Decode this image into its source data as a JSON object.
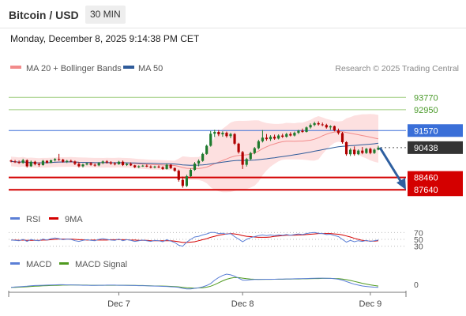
{
  "header": {
    "instrument": "Bitcoin / USD",
    "timeframe": "30 MIN",
    "datetime": "Monday, December 8, 2025 9:14:38 PM CET"
  },
  "legend": {
    "ma20_label": "MA 20 + Bollinger Bands",
    "ma50_label": "MA 50",
    "credit": "Research © 2025 Trading Central"
  },
  "colors": {
    "ma20": "#f28b8b",
    "ma50": "#2f5b9a",
    "bands_fill": "#fde0e0",
    "resistance": "#9ccc7a",
    "pivot": "#3a6fd8",
    "support": "#d40000",
    "price_label_bg": "#333333",
    "candle_up": "#1f7a2e",
    "candle_down": "#b00000",
    "rsi": "#5b7fd6",
    "rsi_ma": "#d40000",
    "macd": "#5b7fd6",
    "macd_signal": "#4f9a1f",
    "arrow": "#2e5fa0"
  },
  "chart_data": [
    {
      "type": "candlestick",
      "title": "Bitcoin / USD",
      "ylim": [
        86500,
        95200
      ],
      "x_labels": [
        "Dec 7",
        "Dec 8",
        "Dec 9"
      ],
      "levels": [
        {
          "value": 93770,
          "label": "93770",
          "kind": "resistance"
        },
        {
          "value": 92950,
          "label": "92950",
          "kind": "resistance"
        },
        {
          "value": 91570,
          "label": "91570",
          "kind": "pivot"
        },
        {
          "value": 88460,
          "label": "88460",
          "kind": "support"
        },
        {
          "value": 87640,
          "label": "87640",
          "kind": "support"
        }
      ],
      "last_price": {
        "value": 90438,
        "label": "90438"
      },
      "forecast_target": 87640,
      "candles": [
        {
          "o": 89580,
          "h": 89640,
          "l": 89460,
          "c": 89520
        },
        {
          "o": 89520,
          "h": 89620,
          "l": 89420,
          "c": 89480
        },
        {
          "o": 89480,
          "h": 89580,
          "l": 89360,
          "c": 89420
        },
        {
          "o": 89420,
          "h": 89700,
          "l": 89380,
          "c": 89600
        },
        {
          "o": 89600,
          "h": 89660,
          "l": 89120,
          "c": 89200
        },
        {
          "o": 89200,
          "h": 89580,
          "l": 89160,
          "c": 89500
        },
        {
          "o": 89500,
          "h": 89560,
          "l": 89260,
          "c": 89340
        },
        {
          "o": 89340,
          "h": 89460,
          "l": 89180,
          "c": 89280
        },
        {
          "o": 89280,
          "h": 89620,
          "l": 89240,
          "c": 89560
        },
        {
          "o": 89560,
          "h": 89600,
          "l": 89380,
          "c": 89440
        },
        {
          "o": 89440,
          "h": 89640,
          "l": 89400,
          "c": 89600
        },
        {
          "o": 89600,
          "h": 89740,
          "l": 89520,
          "c": 89680
        },
        {
          "o": 89680,
          "h": 90020,
          "l": 89560,
          "c": 89640
        },
        {
          "o": 89640,
          "h": 89700,
          "l": 89440,
          "c": 89500
        },
        {
          "o": 89500,
          "h": 89620,
          "l": 89420,
          "c": 89560
        },
        {
          "o": 89560,
          "h": 89640,
          "l": 89460,
          "c": 89520
        },
        {
          "o": 89520,
          "h": 89580,
          "l": 89280,
          "c": 89360
        },
        {
          "o": 89360,
          "h": 89480,
          "l": 89120,
          "c": 89200
        },
        {
          "o": 89200,
          "h": 89380,
          "l": 89120,
          "c": 89320
        },
        {
          "o": 89320,
          "h": 89440,
          "l": 89260,
          "c": 89400
        },
        {
          "o": 89400,
          "h": 89480,
          "l": 89240,
          "c": 89300
        },
        {
          "o": 89300,
          "h": 89380,
          "l": 89180,
          "c": 89260
        },
        {
          "o": 89260,
          "h": 89480,
          "l": 89200,
          "c": 89420
        },
        {
          "o": 89420,
          "h": 89580,
          "l": 89340,
          "c": 89520
        },
        {
          "o": 89520,
          "h": 89600,
          "l": 89380,
          "c": 89460
        },
        {
          "o": 89460,
          "h": 89540,
          "l": 89300,
          "c": 89380
        },
        {
          "o": 89380,
          "h": 89480,
          "l": 89260,
          "c": 89340
        },
        {
          "o": 89340,
          "h": 89560,
          "l": 89300,
          "c": 89500
        },
        {
          "o": 89500,
          "h": 89580,
          "l": 89220,
          "c": 89280
        },
        {
          "o": 89280,
          "h": 89420,
          "l": 89220,
          "c": 89360
        },
        {
          "o": 89360,
          "h": 89460,
          "l": 89220,
          "c": 89260
        },
        {
          "o": 89260,
          "h": 89300,
          "l": 89080,
          "c": 89140
        },
        {
          "o": 89140,
          "h": 89260,
          "l": 89080,
          "c": 89200
        },
        {
          "o": 89200,
          "h": 89300,
          "l": 89160,
          "c": 89240
        },
        {
          "o": 89240,
          "h": 89320,
          "l": 89140,
          "c": 89180
        },
        {
          "o": 89180,
          "h": 89260,
          "l": 89060,
          "c": 89120
        },
        {
          "o": 89120,
          "h": 89240,
          "l": 89060,
          "c": 89180
        },
        {
          "o": 89180,
          "h": 89260,
          "l": 89080,
          "c": 89140
        },
        {
          "o": 89140,
          "h": 89200,
          "l": 88960,
          "c": 89020
        },
        {
          "o": 89020,
          "h": 89380,
          "l": 88980,
          "c": 89300
        },
        {
          "o": 89300,
          "h": 89340,
          "l": 89020,
          "c": 89080
        },
        {
          "o": 89080,
          "h": 89120,
          "l": 88840,
          "c": 88900
        },
        {
          "o": 88900,
          "h": 88980,
          "l": 88180,
          "c": 88300
        },
        {
          "o": 88300,
          "h": 88520,
          "l": 87780,
          "c": 87900
        },
        {
          "o": 87900,
          "h": 88640,
          "l": 87820,
          "c": 88540
        },
        {
          "o": 88540,
          "h": 89060,
          "l": 88480,
          "c": 88960
        },
        {
          "o": 88960,
          "h": 89480,
          "l": 88900,
          "c": 89380
        },
        {
          "o": 89380,
          "h": 89660,
          "l": 89200,
          "c": 89560
        },
        {
          "o": 89560,
          "h": 90100,
          "l": 89500,
          "c": 90020
        },
        {
          "o": 90020,
          "h": 90640,
          "l": 89960,
          "c": 90560
        },
        {
          "o": 90560,
          "h": 91540,
          "l": 90500,
          "c": 91360
        },
        {
          "o": 91360,
          "h": 91620,
          "l": 91140,
          "c": 91480
        },
        {
          "o": 91480,
          "h": 91600,
          "l": 91200,
          "c": 91320
        },
        {
          "o": 91320,
          "h": 91520,
          "l": 91160,
          "c": 91420
        },
        {
          "o": 91420,
          "h": 91500,
          "l": 91100,
          "c": 91200
        },
        {
          "o": 91200,
          "h": 91420,
          "l": 91060,
          "c": 91340
        },
        {
          "o": 91340,
          "h": 91400,
          "l": 90620,
          "c": 90700
        },
        {
          "o": 90700,
          "h": 90760,
          "l": 90040,
          "c": 90140
        },
        {
          "o": 90140,
          "h": 90220,
          "l": 89020,
          "c": 89300
        },
        {
          "o": 89300,
          "h": 89760,
          "l": 89180,
          "c": 89680
        },
        {
          "o": 89680,
          "h": 90160,
          "l": 89600,
          "c": 90080
        },
        {
          "o": 90080,
          "h": 90480,
          "l": 90000,
          "c": 90400
        },
        {
          "o": 90400,
          "h": 90960,
          "l": 90320,
          "c": 90860
        },
        {
          "o": 90860,
          "h": 91600,
          "l": 90780,
          "c": 91100
        },
        {
          "o": 91100,
          "h": 91340,
          "l": 90900,
          "c": 91000
        },
        {
          "o": 91000,
          "h": 91260,
          "l": 90880,
          "c": 91160
        },
        {
          "o": 91160,
          "h": 91300,
          "l": 90960,
          "c": 91040
        },
        {
          "o": 91040,
          "h": 91320,
          "l": 90980,
          "c": 91240
        },
        {
          "o": 91240,
          "h": 91360,
          "l": 91080,
          "c": 91160
        },
        {
          "o": 91160,
          "h": 91420,
          "l": 91100,
          "c": 91340
        },
        {
          "o": 91340,
          "h": 91460,
          "l": 91180,
          "c": 91240
        },
        {
          "o": 91240,
          "h": 91500,
          "l": 91180,
          "c": 91420
        },
        {
          "o": 91420,
          "h": 91620,
          "l": 91340,
          "c": 91560
        },
        {
          "o": 91560,
          "h": 91700,
          "l": 91420,
          "c": 91480
        },
        {
          "o": 91480,
          "h": 91840,
          "l": 91440,
          "c": 91780
        },
        {
          "o": 91780,
          "h": 92040,
          "l": 91700,
          "c": 91940
        },
        {
          "o": 91940,
          "h": 92160,
          "l": 91860,
          "c": 92060
        },
        {
          "o": 92060,
          "h": 92180,
          "l": 91900,
          "c": 91980
        },
        {
          "o": 91980,
          "h": 92100,
          "l": 91860,
          "c": 91940
        },
        {
          "o": 91940,
          "h": 92020,
          "l": 91700,
          "c": 91780
        },
        {
          "o": 91780,
          "h": 91920,
          "l": 91620,
          "c": 91860
        },
        {
          "o": 91860,
          "h": 91900,
          "l": 91520,
          "c": 91580
        },
        {
          "o": 91580,
          "h": 91700,
          "l": 91300,
          "c": 91400
        },
        {
          "o": 91400,
          "h": 91480,
          "l": 90700,
          "c": 90800
        },
        {
          "o": 90800,
          "h": 90860,
          "l": 89900,
          "c": 90000
        },
        {
          "o": 90000,
          "h": 90400,
          "l": 89880,
          "c": 90300
        },
        {
          "o": 90300,
          "h": 90520,
          "l": 89900,
          "c": 90000
        },
        {
          "o": 90000,
          "h": 90320,
          "l": 89940,
          "c": 90240
        },
        {
          "o": 90240,
          "h": 90480,
          "l": 90000,
          "c": 90080
        },
        {
          "o": 90080,
          "h": 90420,
          "l": 90020,
          "c": 90360
        },
        {
          "o": 90360,
          "h": 90440,
          "l": 90000,
          "c": 90080
        },
        {
          "o": 90080,
          "h": 90380,
          "l": 90020,
          "c": 90300
        },
        {
          "o": 90300,
          "h": 90560,
          "l": 90260,
          "c": 90438
        }
      ]
    },
    {
      "type": "line",
      "title": "RSI",
      "series": [
        {
          "name": "RSI",
          "values": [
            48,
            47,
            46,
            50,
            44,
            50,
            47,
            46,
            51,
            48,
            52,
            54,
            52,
            49,
            51,
            50,
            46,
            44,
            47,
            49,
            47,
            46,
            50,
            52,
            50,
            48,
            47,
            51,
            46,
            49,
            47,
            44,
            46,
            48,
            46,
            44,
            47,
            46,
            43,
            49,
            45,
            41,
            33,
            30,
            42,
            50,
            57,
            59,
            63,
            66,
            70,
            70,
            67,
            68,
            65,
            67,
            58,
            51,
            43,
            50,
            55,
            58,
            61,
            63,
            61,
            63,
            61,
            63,
            62,
            64,
            62,
            64,
            66,
            64,
            67,
            69,
            70,
            68,
            67,
            64,
            65,
            61,
            58,
            50,
            42,
            47,
            43,
            46,
            44,
            47,
            44,
            46,
            48
          ]
        },
        {
          "name": "9MA",
          "values": [
            48,
            48,
            47,
            48,
            47,
            47,
            47,
            47,
            48,
            48,
            49,
            50,
            51,
            51,
            51,
            51,
            50,
            49,
            49,
            48,
            48,
            48,
            48,
            48,
            48,
            49,
            49,
            49,
            49,
            49,
            48,
            48,
            47,
            47,
            47,
            46,
            46,
            46,
            46,
            46,
            46,
            45,
            43,
            41,
            41,
            42,
            43,
            46,
            49,
            52,
            56,
            59,
            62,
            64,
            66,
            67,
            66,
            64,
            61,
            59,
            58,
            57,
            56,
            56,
            56,
            57,
            59,
            60,
            61,
            62,
            62,
            62,
            63,
            63,
            64,
            65,
            66,
            67,
            67,
            67,
            67,
            66,
            65,
            63,
            60,
            57,
            53,
            50,
            47,
            46,
            45,
            45,
            46
          ]
        }
      ],
      "ticks": [
        "70",
        "50",
        "30"
      ]
    },
    {
      "type": "line",
      "title": "MACD",
      "series": [
        {
          "name": "MACD",
          "values": [
            2,
            4,
            6,
            8,
            10,
            13,
            15,
            16,
            17,
            18,
            19,
            20,
            21,
            21,
            20,
            20,
            19,
            18,
            17,
            17,
            16,
            16,
            17,
            17,
            18,
            18,
            18,
            17,
            17,
            16,
            16,
            15,
            14,
            14,
            13,
            12,
            11,
            10,
            9,
            8,
            6,
            4,
            1,
            -6,
            -10,
            -10,
            -6,
            -2,
            5,
            15,
            30,
            55,
            75,
            90,
            100,
            95,
            85,
            70,
            55,
            55,
            58,
            60,
            60,
            61,
            62,
            62,
            62,
            63,
            63,
            64,
            64,
            65,
            66,
            66,
            67,
            68,
            69,
            70,
            70,
            69,
            68,
            66,
            62,
            55,
            45,
            35,
            25,
            18,
            12,
            8,
            5,
            3,
            2
          ]
        },
        {
          "name": "MACD Signal",
          "values": [
            1,
            2,
            3,
            4,
            6,
            8,
            10,
            11,
            13,
            14,
            15,
            16,
            17,
            18,
            18,
            19,
            19,
            19,
            18,
            18,
            17,
            17,
            17,
            17,
            17,
            17,
            17,
            17,
            17,
            17,
            16,
            16,
            15,
            15,
            14,
            13,
            12,
            12,
            11,
            10,
            9,
            7,
            5,
            2,
            -1,
            -3,
            -4,
            -3,
            -1,
            3,
            10,
            22,
            36,
            50,
            62,
            70,
            75,
            74,
            70,
            66,
            63,
            62,
            61,
            61,
            61,
            61,
            62,
            62,
            62,
            63,
            63,
            64,
            64,
            65,
            65,
            66,
            67,
            67,
            68,
            68,
            68,
            67,
            66,
            63,
            59,
            53,
            46,
            39,
            32,
            26,
            20,
            15,
            11
          ]
        }
      ],
      "ticks": [
        "0"
      ]
    }
  ]
}
